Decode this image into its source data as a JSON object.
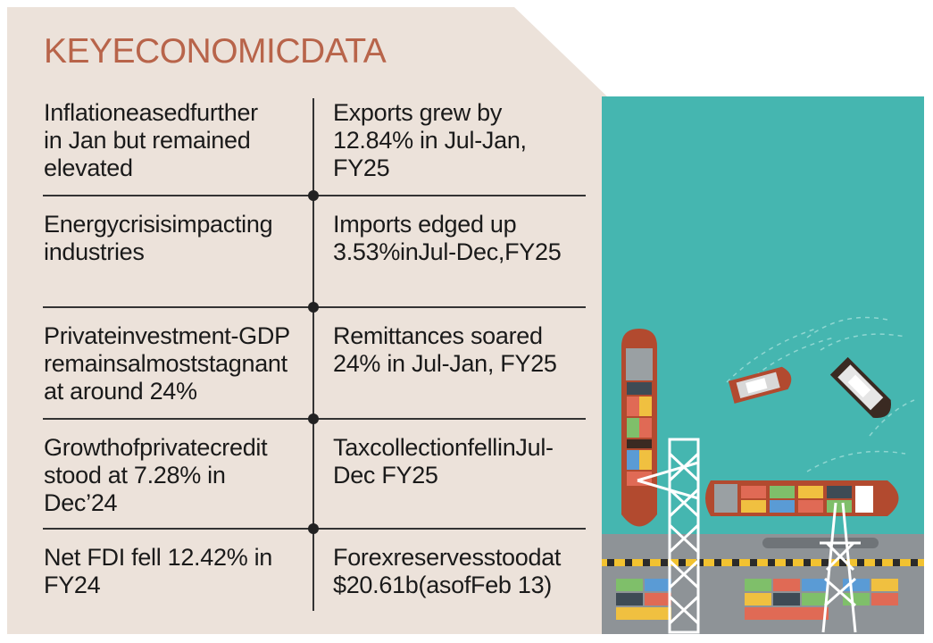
{
  "title": "KEYECONOMICDATA",
  "rows": [
    {
      "left": "Inflationeasedfurther\nin Jan but remained\nelevated",
      "right": "Exports grew by\n12.84% in Jul-Jan,\nFY25"
    },
    {
      "left": "Energycrisisimpacting\nindustries",
      "right": "Imports edged up\n3.53%inJul-Dec,FY25"
    },
    {
      "left": "Privateinvestment-GDP\nremainsalmoststagnant\nat around 24%",
      "right": "Remittances soared\n24% in Jul-Jan, FY25"
    },
    {
      "left": "Growthofprivatecredit\nstood at 7.28% in\nDec’24",
      "right": "TaxcollectionfellinJul-\nDec FY25"
    },
    {
      "left": "Net FDI fell 12.42% in\nFY24",
      "right": "Forexreservesstoodat\n$20.61b(asofFeb 13)"
    }
  ],
  "colors": {
    "background": "#ece2da",
    "title": "#b8644a",
    "sea": "#45b6b0",
    "dock": "#8e9397"
  },
  "illustration": "port-with-container-ships-and-cranes"
}
